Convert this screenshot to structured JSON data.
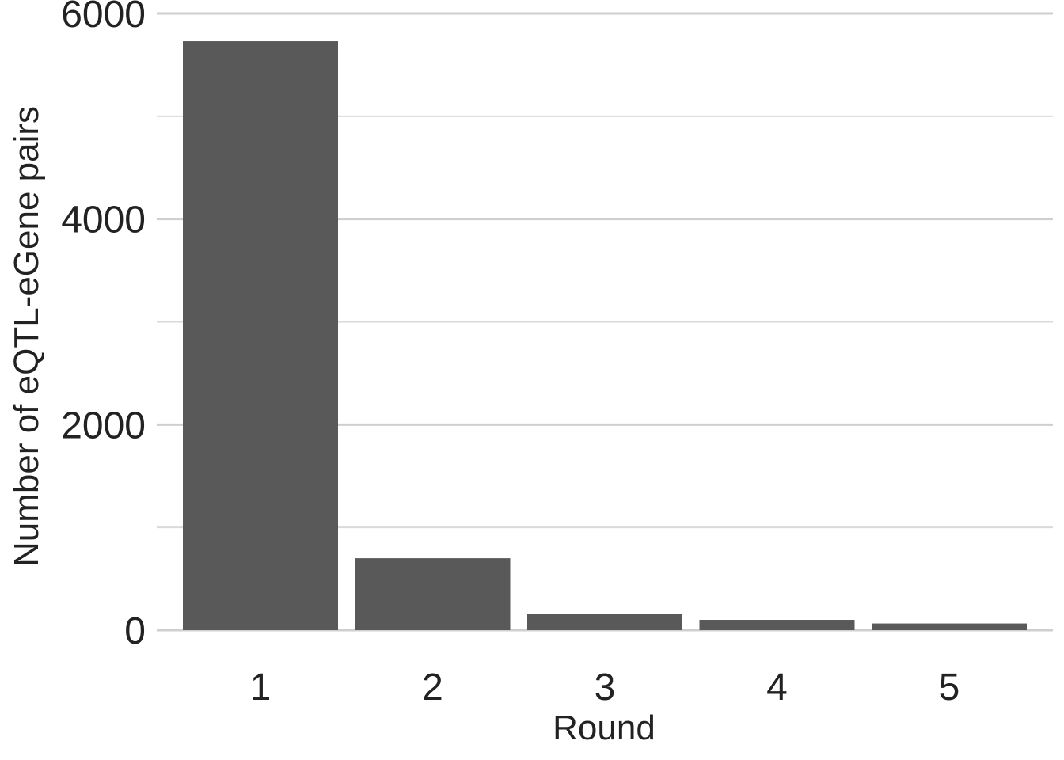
{
  "chart_data": {
    "type": "bar",
    "categories": [
      "1",
      "2",
      "3",
      "4",
      "5"
    ],
    "values": [
      5730,
      700,
      155,
      100,
      65
    ],
    "xlabel": "Round",
    "ylabel": "Number of eQTL-eGene pairs",
    "ylim": [
      0,
      6000
    ],
    "y_ticks": [
      "0",
      "2000",
      "4000",
      "6000"
    ],
    "y_tick_values": [
      0,
      2000,
      4000,
      6000
    ],
    "y_minor_tick_values": [
      1000,
      3000,
      5000
    ],
    "grid": true,
    "colors": {
      "bar": "#595959",
      "grid": "#cfcfcf",
      "text": "#222222"
    }
  }
}
